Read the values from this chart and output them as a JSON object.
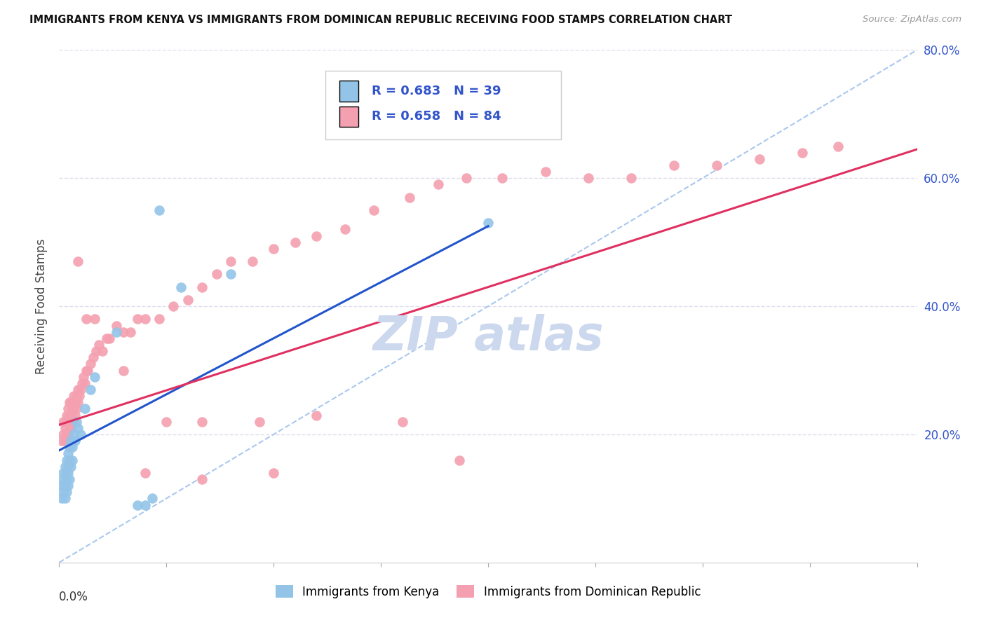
{
  "title": "IMMIGRANTS FROM KENYA VS IMMIGRANTS FROM DOMINICAN REPUBLIC RECEIVING FOOD STAMPS CORRELATION CHART",
  "source": "Source: ZipAtlas.com",
  "ylabel": "Receiving Food Stamps",
  "xlim": [
    0.0,
    0.6
  ],
  "ylim": [
    0.0,
    0.8
  ],
  "yticks": [
    0.0,
    0.2,
    0.4,
    0.6,
    0.8
  ],
  "ytick_labels": [
    "",
    "20.0%",
    "40.0%",
    "60.0%",
    "80.0%"
  ],
  "xticks": [
    0.0,
    0.075,
    0.15,
    0.225,
    0.3,
    0.375,
    0.45,
    0.525,
    0.6
  ],
  "kenya_R": 0.683,
  "kenya_N": 39,
  "dr_R": 0.658,
  "dr_N": 84,
  "kenya_color": "#93c4e8",
  "dr_color": "#f4a0b0",
  "kenya_line_color": "#2255cc",
  "dr_line_color": "#e03060",
  "ref_line_color": "#aac8ee",
  "background_color": "#ffffff",
  "grid_color": "#ddddee",
  "legend_label_color": "#3355cc",
  "watermark_color": "#ccd8ee",
  "kenya_x": [
    0.002,
    0.002,
    0.003,
    0.003,
    0.003,
    0.004,
    0.004,
    0.004,
    0.005,
    0.005,
    0.005,
    0.005,
    0.006,
    0.006,
    0.006,
    0.006,
    0.007,
    0.007,
    0.007,
    0.008,
    0.008,
    0.009,
    0.009,
    0.01,
    0.011,
    0.012,
    0.013,
    0.015,
    0.018,
    0.022,
    0.025,
    0.04,
    0.055,
    0.06,
    0.065,
    0.07,
    0.085,
    0.12,
    0.3
  ],
  "kenya_y": [
    0.1,
    0.12,
    0.11,
    0.13,
    0.14,
    0.1,
    0.12,
    0.15,
    0.11,
    0.13,
    0.14,
    0.16,
    0.12,
    0.14,
    0.15,
    0.17,
    0.13,
    0.16,
    0.18,
    0.15,
    0.19,
    0.16,
    0.18,
    0.2,
    0.19,
    0.22,
    0.21,
    0.2,
    0.24,
    0.27,
    0.29,
    0.36,
    0.09,
    0.09,
    0.1,
    0.55,
    0.43,
    0.45,
    0.53
  ],
  "kenya_line_x": [
    0.0,
    0.3
  ],
  "kenya_line_y": [
    0.175,
    0.525
  ],
  "dr_x": [
    0.002,
    0.003,
    0.003,
    0.004,
    0.004,
    0.005,
    0.005,
    0.005,
    0.006,
    0.006,
    0.006,
    0.007,
    0.007,
    0.007,
    0.008,
    0.008,
    0.008,
    0.009,
    0.009,
    0.01,
    0.01,
    0.01,
    0.011,
    0.011,
    0.012,
    0.012,
    0.013,
    0.013,
    0.014,
    0.015,
    0.016,
    0.017,
    0.018,
    0.019,
    0.02,
    0.022,
    0.024,
    0.026,
    0.028,
    0.03,
    0.035,
    0.04,
    0.045,
    0.05,
    0.055,
    0.06,
    0.07,
    0.08,
    0.09,
    0.1,
    0.11,
    0.12,
    0.135,
    0.15,
    0.165,
    0.18,
    0.2,
    0.22,
    0.245,
    0.265,
    0.285,
    0.31,
    0.34,
    0.37,
    0.4,
    0.43,
    0.46,
    0.49,
    0.52,
    0.545,
    0.013,
    0.025,
    0.045,
    0.075,
    0.1,
    0.14,
    0.18,
    0.24,
    0.019,
    0.033,
    0.06,
    0.1,
    0.15,
    0.28
  ],
  "dr_y": [
    0.19,
    0.2,
    0.22,
    0.19,
    0.21,
    0.2,
    0.22,
    0.23,
    0.2,
    0.22,
    0.24,
    0.21,
    0.23,
    0.25,
    0.21,
    0.23,
    0.25,
    0.22,
    0.24,
    0.22,
    0.24,
    0.26,
    0.23,
    0.25,
    0.24,
    0.26,
    0.25,
    0.27,
    0.26,
    0.27,
    0.28,
    0.29,
    0.28,
    0.3,
    0.3,
    0.31,
    0.32,
    0.33,
    0.34,
    0.33,
    0.35,
    0.37,
    0.36,
    0.36,
    0.38,
    0.38,
    0.38,
    0.4,
    0.41,
    0.43,
    0.45,
    0.47,
    0.47,
    0.49,
    0.5,
    0.51,
    0.52,
    0.55,
    0.57,
    0.59,
    0.6,
    0.6,
    0.61,
    0.6,
    0.6,
    0.62,
    0.62,
    0.63,
    0.64,
    0.65,
    0.47,
    0.38,
    0.3,
    0.22,
    0.22,
    0.22,
    0.23,
    0.22,
    0.38,
    0.35,
    0.14,
    0.13,
    0.14,
    0.16
  ],
  "dr_line_x": [
    0.0,
    0.6
  ],
  "dr_line_y": [
    0.215,
    0.645
  ],
  "ref_line_x": [
    0.0,
    0.6
  ],
  "ref_line_y": [
    0.0,
    0.8
  ]
}
